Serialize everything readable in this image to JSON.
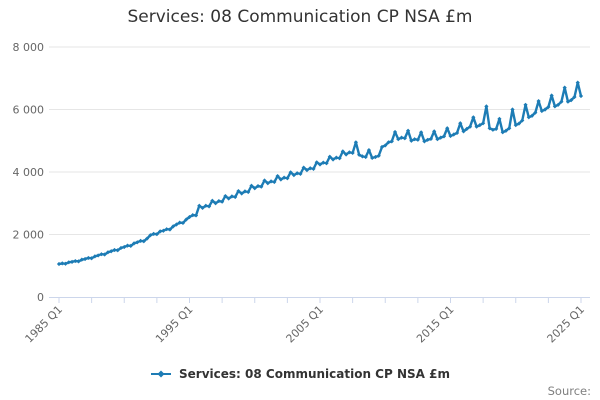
{
  "chart": {
    "title": "Services: 08 Communication CP NSA £m"
  },
  "legend": {
    "label": "Services: 08 Communication CP NSA £m"
  },
  "footer": {
    "source": "Source:"
  },
  "colors": {
    "series": "#1d7cb5",
    "grid": "#e6e6e6",
    "axis": "#ccd6eb",
    "tick_label": "#666666",
    "title": "#333333"
  },
  "chart_data": {
    "type": "line",
    "title": "Services: 08 Communication CP NSA £m",
    "xlabel": "",
    "ylabel": "",
    "ylim": [
      0,
      8000
    ],
    "grid": true,
    "legend_position": "bottom",
    "x_start": "1985 Q1",
    "x_end": "2025 Q1",
    "x_interval": "quarter",
    "x_tick_labels": [
      "1985 Q1",
      "1995 Q1",
      "2005 Q1",
      "2015 Q1",
      "2025 Q1"
    ],
    "y_ticks": [
      0,
      2000,
      4000,
      6000,
      8000
    ],
    "y_tick_labels": [
      "0",
      "2 000",
      "4 000",
      "6 000",
      "8 000"
    ],
    "series": [
      {
        "name": "Services: 08 Communication CP NSA £m",
        "color": "#1d7cb5",
        "values": [
          1055,
          1075,
          1065,
          1110,
          1125,
          1150,
          1140,
          1195,
          1215,
          1250,
          1240,
          1300,
          1330,
          1370,
          1360,
          1430,
          1465,
          1505,
          1495,
          1570,
          1600,
          1645,
          1635,
          1715,
          1750,
          1795,
          1785,
          1870,
          1975,
          2020,
          2010,
          2100,
          2120,
          2170,
          2160,
          2260,
          2320,
          2380,
          2370,
          2480,
          2560,
          2620,
          2610,
          2920,
          2850,
          2920,
          2900,
          3080,
          3000,
          3070,
          3050,
          3230,
          3150,
          3220,
          3200,
          3390,
          3310,
          3380,
          3360,
          3560,
          3480,
          3550,
          3530,
          3730,
          3640,
          3700,
          3680,
          3870,
          3760,
          3820,
          3800,
          3990,
          3900,
          3960,
          3940,
          4140,
          4060,
          4120,
          4100,
          4310,
          4240,
          4300,
          4280,
          4490,
          4400,
          4460,
          4440,
          4660,
          4560,
          4630,
          4610,
          4950,
          4550,
          4500,
          4480,
          4700,
          4450,
          4480,
          4520,
          4800,
          4850,
          4950,
          4980,
          5280,
          5050,
          5100,
          5080,
          5320,
          5000,
          5050,
          5030,
          5270,
          4980,
          5030,
          5060,
          5300,
          5050,
          5100,
          5140,
          5400,
          5150,
          5200,
          5250,
          5560,
          5300,
          5380,
          5450,
          5750,
          5450,
          5500,
          5560,
          6100,
          5400,
          5350,
          5380,
          5700,
          5270,
          5320,
          5400,
          6000,
          5500,
          5550,
          5650,
          6150,
          5750,
          5800,
          5900,
          6270,
          5950,
          6000,
          6080,
          6450,
          6100,
          6150,
          6250,
          6700,
          6250,
          6300,
          6400,
          6860,
          6430
        ]
      }
    ]
  }
}
